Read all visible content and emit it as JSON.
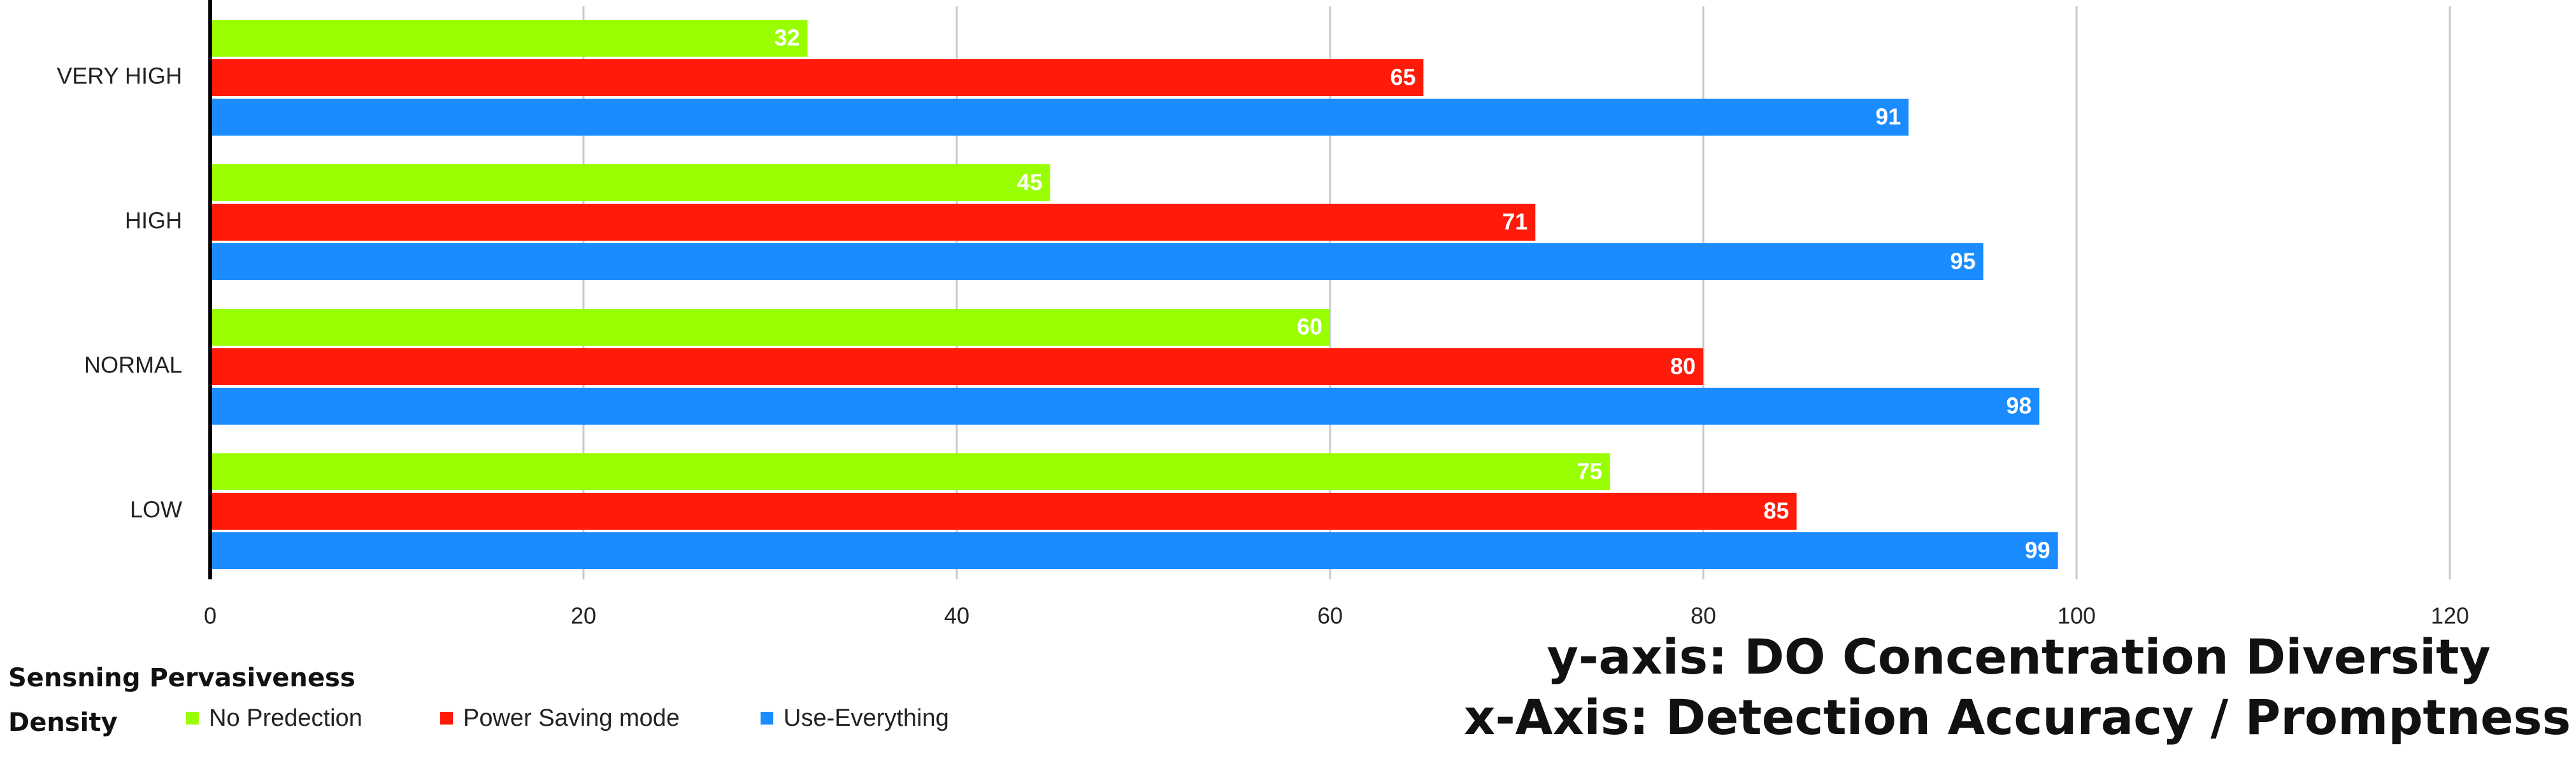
{
  "chart_data": {
    "type": "barh",
    "categories": [
      "VERY HIGH",
      "HIGH",
      "NORMAL",
      "LOW"
    ],
    "series": [
      {
        "name": "No Predection",
        "color": "#99ff00",
        "values": [
          32,
          45,
          60,
          75
        ]
      },
      {
        "name": "Power Saving mode",
        "color": "#ff1a0a",
        "values": [
          65,
          71,
          80,
          85
        ]
      },
      {
        "name": "Use-Everything",
        "color": "#1a8cff",
        "values": [
          91,
          95,
          98,
          99
        ]
      }
    ],
    "xlim": [
      0,
      120
    ],
    "xticks": [
      0,
      20,
      40,
      60,
      80,
      100,
      120
    ],
    "grid": true,
    "legend_title": "Sensning Pervasiveness Density",
    "annotations": [
      "y-axis: DO Concentration Diversity",
      "x-Axis: Detection Accuracy / Promptness"
    ]
  }
}
